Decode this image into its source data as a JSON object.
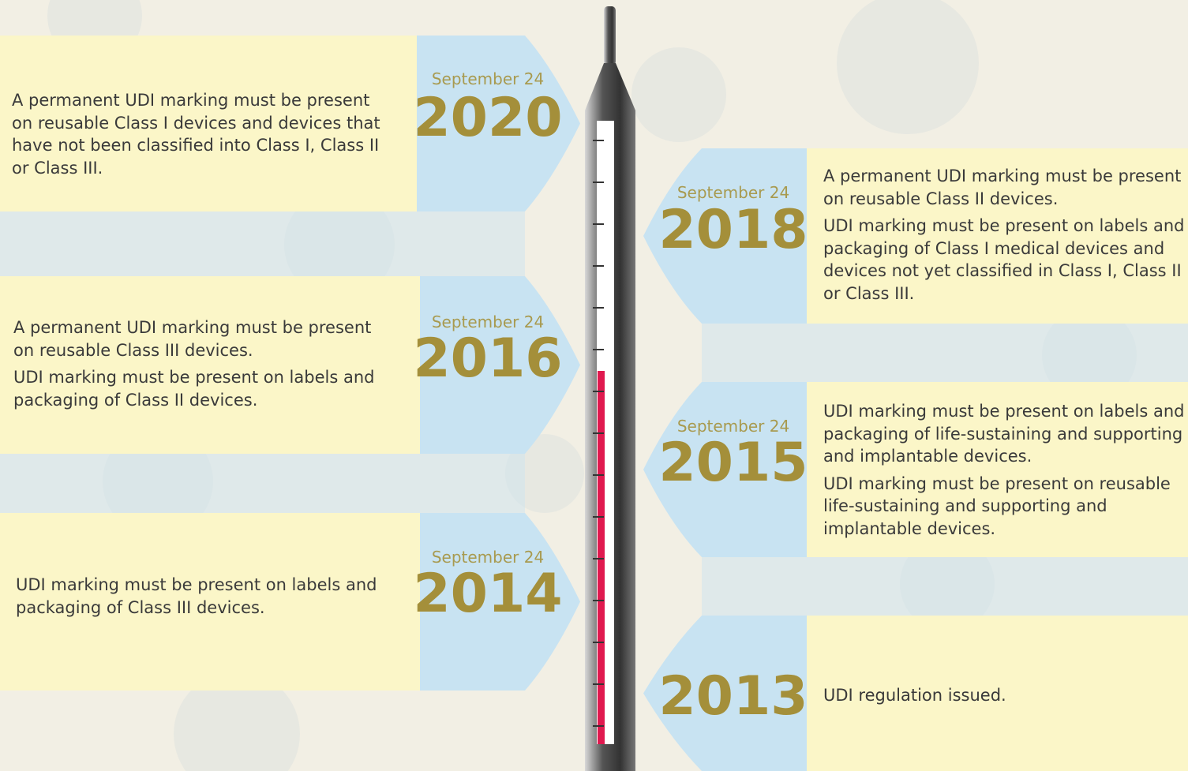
{
  "entries": [
    {
      "date": "September 24",
      "year": "2020",
      "paragraphs": [
        "A permanent UDI marking must be present on reusable Class I devices and devices that have not been classified into Class I, Class II or Class III."
      ]
    },
    {
      "date": "September 24",
      "year": "2016",
      "paragraphs": [
        "A permanent UDI marking must be present on reusable Class III devices.",
        "UDI marking must be present on labels and packaging of Class II devices."
      ]
    },
    {
      "date": "September 24",
      "year": "2014",
      "paragraphs": [
        "UDI marking must be present on labels and packaging of Class III devices."
      ]
    },
    {
      "date": "September 24",
      "year": "2018",
      "paragraphs": [
        "A permanent UDI marking must be present on reusable Class II devices.",
        "UDI marking must be present on labels and packaging of Class I medical devices and devices not yet classified in Class I, Class II or Class III."
      ]
    },
    {
      "date": "September 24",
      "year": "2015",
      "paragraphs": [
        "UDI marking must be present on labels and packaging of life-sustaining and supporting and implantable devices.",
        "UDI marking must be present on reusable life-sustaining and supporting and implantable devices."
      ]
    },
    {
      "year": "2013",
      "paragraphs": [
        "UDI regulation issued."
      ]
    }
  ]
}
